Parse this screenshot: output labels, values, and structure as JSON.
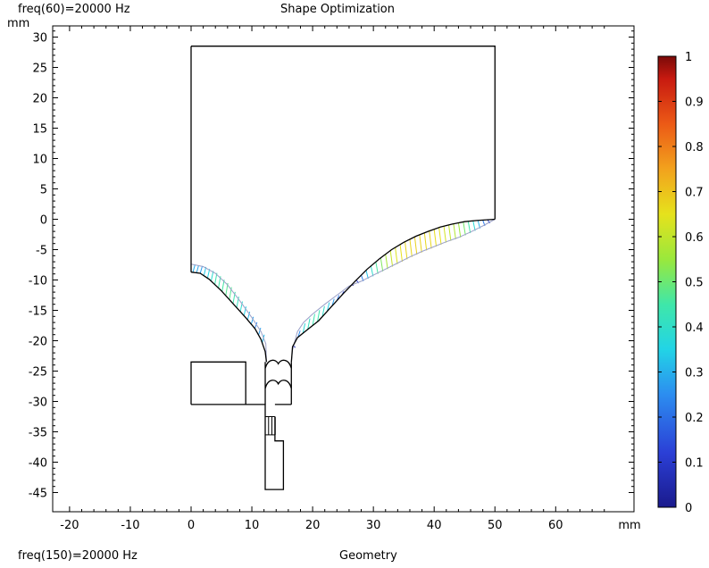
{
  "header": {
    "top_left": "freq(60)=20000 Hz",
    "title": "Shape Optimization",
    "y_unit": "mm"
  },
  "footer": {
    "bottom_left": "freq(150)=20000 Hz",
    "bottom_center": "Geometry"
  },
  "chart_data": {
    "type": "line",
    "x_unit": "mm",
    "y_unit": "mm",
    "xlim": [
      -23,
      73
    ],
    "ylim": [
      -48,
      32
    ],
    "x_ticks": [
      -20,
      -10,
      0,
      10,
      20,
      30,
      40,
      50,
      60
    ],
    "y_ticks": [
      30,
      25,
      20,
      15,
      10,
      5,
      0,
      -5,
      -10,
      -15,
      -20,
      -25,
      -30,
      -35,
      -40,
      -45
    ],
    "colorbar": {
      "min": 0,
      "max": 1,
      "ticks": [
        1,
        0.9,
        0.8,
        0.7,
        0.6,
        0.5,
        0.4,
        0.3,
        0.2,
        0.1,
        0
      ],
      "colormap": "rainbow"
    },
    "geometry": {
      "outer_box": [
        [
          0,
          28.5
        ],
        [
          50,
          28.5
        ],
        [
          50,
          0
        ]
      ],
      "left_wall": [
        [
          0,
          28.5
        ],
        [
          0,
          -8.7
        ]
      ],
      "left_lower_box": [
        [
          0,
          -30.5
        ],
        [
          0,
          -23.5
        ],
        [
          9,
          -23.5
        ],
        [
          9,
          -30.5
        ],
        [
          0,
          -30.5
        ]
      ],
      "bottom_step": [
        [
          9,
          -30.5
        ],
        [
          12.2,
          -30.5
        ],
        [
          12.2,
          -44.5
        ],
        [
          15.2,
          -44.5
        ],
        [
          15.2,
          -36.5
        ],
        [
          13.8,
          -36.5
        ],
        [
          13.8,
          -32.5
        ]
      ],
      "neck_right": [
        [
          16.5,
          -30.5
        ],
        [
          13.8,
          -30.5
        ]
      ],
      "neck_lines": [
        [
          12.2,
          -23.5
        ],
        [
          12.2,
          -30.5
        ],
        [
          16.5,
          -23.5
        ],
        [
          16.5,
          -30.5
        ]
      ],
      "left_horn_initial": [
        [
          0,
          -8.7
        ],
        [
          1.5,
          -8.9
        ],
        [
          3,
          -9.9
        ],
        [
          5,
          -11.8
        ],
        [
          7,
          -14
        ],
        [
          9,
          -16.2
        ],
        [
          10.5,
          -18
        ],
        [
          11.5,
          -19.8
        ],
        [
          12.2,
          -21.8
        ],
        [
          12.4,
          -23.5
        ]
      ],
      "left_horn_optimized": [
        [
          0,
          -7.4
        ],
        [
          2,
          -7.8
        ],
        [
          4,
          -8.9
        ],
        [
          6,
          -10.8
        ],
        [
          8,
          -13.4
        ],
        [
          10,
          -16.2
        ],
        [
          11.5,
          -18.5
        ],
        [
          12.3,
          -20.5
        ],
        [
          12.4,
          -23.5
        ]
      ],
      "right_horn_initial": [
        [
          16.5,
          -23.5
        ],
        [
          16.7,
          -21
        ],
        [
          17.5,
          -19.5
        ],
        [
          19,
          -18.3
        ],
        [
          21,
          -16.7
        ],
        [
          23,
          -14.5
        ],
        [
          25,
          -12.3
        ],
        [
          27,
          -10.2
        ],
        [
          29,
          -8.2
        ],
        [
          31,
          -6.5
        ],
        [
          33,
          -5
        ],
        [
          35,
          -3.8
        ],
        [
          37,
          -2.8
        ],
        [
          39,
          -2
        ],
        [
          41,
          -1.3
        ],
        [
          43,
          -0.8
        ],
        [
          45,
          -0.4
        ],
        [
          47,
          -0.2
        ],
        [
          50,
          0
        ]
      ],
      "right_horn_optimized": [
        [
          16.5,
          -23.5
        ],
        [
          16.7,
          -21.5
        ],
        [
          17.5,
          -18.5
        ],
        [
          18.5,
          -17
        ],
        [
          20,
          -15.6
        ],
        [
          22,
          -14
        ],
        [
          24,
          -12.5
        ],
        [
          26,
          -11
        ],
        [
          28,
          -10.2
        ],
        [
          30,
          -9.2
        ],
        [
          32,
          -8.2
        ],
        [
          34,
          -7.2
        ],
        [
          36,
          -6.2
        ],
        [
          38,
          -5.3
        ],
        [
          40,
          -4.5
        ],
        [
          42,
          -3.7
        ],
        [
          44,
          -3
        ],
        [
          46,
          -2.1
        ],
        [
          48,
          -1.1
        ],
        [
          50,
          0
        ]
      ]
    }
  }
}
